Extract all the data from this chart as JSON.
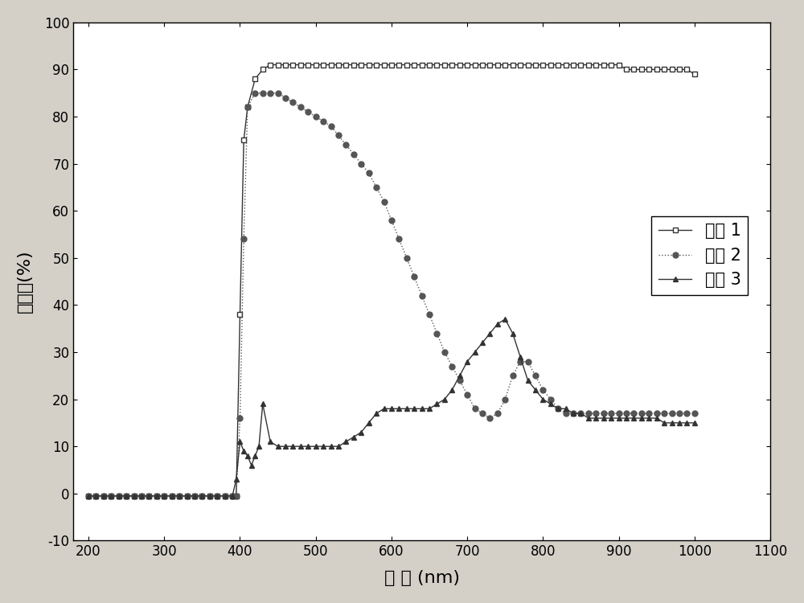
{
  "title": "",
  "xlabel": "波 长 (nm)",
  "ylabel": "透过率(%)",
  "xlim": [
    180,
    1100
  ],
  "ylim": [
    -10,
    100
  ],
  "xticks": [
    200,
    300,
    400,
    500,
    600,
    700,
    800,
    900,
    1000,
    1100
  ],
  "yticks": [
    -10,
    0,
    10,
    20,
    30,
    40,
    50,
    60,
    70,
    80,
    90,
    100
  ],
  "legend_labels": [
    "样品 1",
    "样品 2",
    "样品 3"
  ],
  "background_color": "#d4d0c8",
  "plot_background": "#ffffff",
  "sample1": {
    "x": [
      200,
      210,
      220,
      230,
      240,
      250,
      260,
      270,
      280,
      290,
      300,
      310,
      320,
      330,
      340,
      350,
      360,
      370,
      380,
      390,
      395,
      400,
      405,
      410,
      420,
      430,
      440,
      450,
      460,
      470,
      480,
      490,
      500,
      510,
      520,
      530,
      540,
      550,
      560,
      570,
      580,
      590,
      600,
      610,
      620,
      630,
      640,
      650,
      660,
      670,
      680,
      690,
      700,
      710,
      720,
      730,
      740,
      750,
      760,
      770,
      780,
      790,
      800,
      810,
      820,
      830,
      840,
      850,
      860,
      870,
      880,
      890,
      900,
      910,
      920,
      930,
      940,
      950,
      960,
      970,
      980,
      990,
      1000
    ],
    "y": [
      -0.5,
      -0.5,
      -0.5,
      -0.5,
      -0.5,
      -0.5,
      -0.5,
      -0.5,
      -0.5,
      -0.5,
      -0.5,
      -0.5,
      -0.5,
      -0.5,
      -0.5,
      -0.5,
      -0.5,
      -0.5,
      -0.5,
      -0.5,
      -0.5,
      38,
      75,
      82,
      88,
      90,
      91,
      91,
      91,
      91,
      91,
      91,
      91,
      91,
      91,
      91,
      91,
      91,
      91,
      91,
      91,
      91,
      91,
      91,
      91,
      91,
      91,
      91,
      91,
      91,
      91,
      91,
      91,
      91,
      91,
      91,
      91,
      91,
      91,
      91,
      91,
      91,
      91,
      91,
      91,
      91,
      91,
      91,
      91,
      91,
      91,
      91,
      91,
      90,
      90,
      90,
      90,
      90,
      90,
      90,
      90,
      90,
      89
    ],
    "marker": "s",
    "color": "#333333",
    "linestyle": "-",
    "markersize": 5,
    "markerfacecolor": "white"
  },
  "sample2": {
    "x": [
      200,
      210,
      220,
      230,
      240,
      250,
      260,
      270,
      280,
      290,
      300,
      310,
      320,
      330,
      340,
      350,
      360,
      370,
      380,
      390,
      395,
      400,
      405,
      410,
      420,
      430,
      440,
      450,
      460,
      470,
      480,
      490,
      500,
      510,
      520,
      530,
      540,
      550,
      560,
      570,
      580,
      590,
      600,
      610,
      620,
      630,
      640,
      650,
      660,
      670,
      680,
      690,
      700,
      710,
      720,
      730,
      740,
      750,
      760,
      770,
      780,
      790,
      800,
      810,
      820,
      830,
      840,
      850,
      860,
      870,
      880,
      890,
      900,
      910,
      920,
      930,
      940,
      950,
      960,
      970,
      980,
      990,
      1000
    ],
    "y": [
      -0.5,
      -0.5,
      -0.5,
      -0.5,
      -0.5,
      -0.5,
      -0.5,
      -0.5,
      -0.5,
      -0.5,
      -0.5,
      -0.5,
      -0.5,
      -0.5,
      -0.5,
      -0.5,
      -0.5,
      -0.5,
      -0.5,
      -0.5,
      -0.5,
      16,
      54,
      82,
      85,
      85,
      85,
      85,
      84,
      83,
      82,
      81,
      80,
      79,
      78,
      76,
      74,
      72,
      70,
      68,
      65,
      62,
      58,
      54,
      50,
      46,
      42,
      38,
      34,
      30,
      27,
      24,
      21,
      18,
      17,
      16,
      17,
      20,
      25,
      28,
      28,
      25,
      22,
      20,
      18,
      17,
      17,
      17,
      17,
      17,
      17,
      17,
      17,
      17,
      17,
      17,
      17,
      17,
      17,
      17,
      17,
      17,
      17
    ],
    "marker": "o",
    "color": "#555555",
    "linestyle": ":",
    "markersize": 5,
    "markerfacecolor": "#555555"
  },
  "sample3": {
    "x": [
      200,
      210,
      220,
      230,
      240,
      250,
      260,
      270,
      280,
      290,
      300,
      310,
      320,
      330,
      340,
      350,
      360,
      370,
      380,
      390,
      395,
      400,
      405,
      410,
      415,
      420,
      425,
      430,
      440,
      450,
      460,
      470,
      480,
      490,
      500,
      510,
      520,
      530,
      540,
      550,
      560,
      570,
      580,
      590,
      600,
      610,
      620,
      630,
      640,
      650,
      660,
      670,
      680,
      690,
      700,
      710,
      720,
      730,
      740,
      750,
      760,
      770,
      780,
      790,
      800,
      810,
      820,
      830,
      840,
      850,
      860,
      870,
      880,
      890,
      900,
      910,
      920,
      930,
      940,
      950,
      960,
      970,
      980,
      990,
      1000
    ],
    "y": [
      -0.5,
      -0.5,
      -0.5,
      -0.5,
      -0.5,
      -0.5,
      -0.5,
      -0.5,
      -0.5,
      -0.5,
      -0.5,
      -0.5,
      -0.5,
      -0.5,
      -0.5,
      -0.5,
      -0.5,
      -0.5,
      -0.5,
      -0.5,
      3,
      11,
      9,
      8,
      6,
      8,
      10,
      19,
      11,
      10,
      10,
      10,
      10,
      10,
      10,
      10,
      10,
      10,
      11,
      12,
      13,
      15,
      17,
      18,
      18,
      18,
      18,
      18,
      18,
      18,
      19,
      20,
      22,
      25,
      28,
      30,
      32,
      34,
      36,
      37,
      34,
      29,
      24,
      22,
      20,
      19,
      18,
      18,
      17,
      17,
      16,
      16,
      16,
      16,
      16,
      16,
      16,
      16,
      16,
      16,
      15,
      15,
      15,
      15,
      15
    ],
    "marker": "^",
    "color": "#333333",
    "linestyle": "-",
    "markersize": 5,
    "markerfacecolor": "#333333"
  }
}
